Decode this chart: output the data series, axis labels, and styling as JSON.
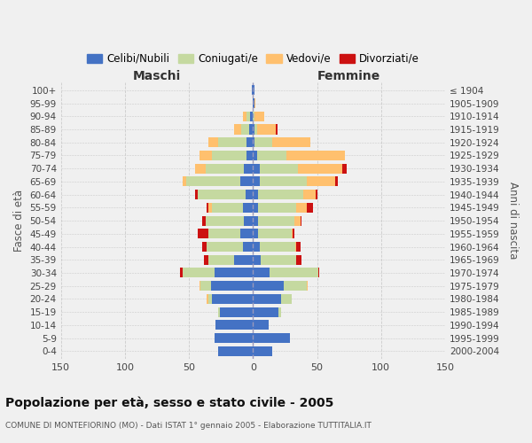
{
  "age_groups": [
    "100+",
    "95-99",
    "90-94",
    "85-89",
    "80-84",
    "75-79",
    "70-74",
    "65-69",
    "60-64",
    "55-59",
    "50-54",
    "45-49",
    "40-44",
    "35-39",
    "30-34",
    "25-29",
    "20-24",
    "15-19",
    "10-14",
    "5-9",
    "0-4"
  ],
  "birth_years": [
    "≤ 1904",
    "1905-1909",
    "1910-1914",
    "1915-1919",
    "1920-1924",
    "1925-1929",
    "1930-1934",
    "1935-1939",
    "1940-1944",
    "1945-1949",
    "1950-1954",
    "1955-1959",
    "1960-1964",
    "1965-1969",
    "1970-1974",
    "1975-1979",
    "1980-1984",
    "1985-1989",
    "1990-1994",
    "1995-1999",
    "2000-2004"
  ],
  "male_celibi": [
    1,
    0,
    2,
    3,
    5,
    5,
    7,
    10,
    6,
    8,
    7,
    10,
    8,
    15,
    30,
    33,
    32,
    26,
    29,
    30,
    27
  ],
  "male_coniugati": [
    0,
    0,
    3,
    6,
    22,
    27,
    30,
    42,
    37,
    24,
    30,
    25,
    28,
    20,
    25,
    8,
    3,
    1,
    0,
    0,
    0
  ],
  "male_vedovi": [
    0,
    0,
    3,
    6,
    8,
    10,
    8,
    3,
    0,
    3,
    0,
    0,
    0,
    0,
    0,
    1,
    1,
    0,
    0,
    0,
    0
  ],
  "male_divorziati": [
    0,
    0,
    0,
    0,
    0,
    0,
    0,
    0,
    2,
    1,
    3,
    8,
    4,
    3,
    2,
    0,
    0,
    0,
    0,
    0,
    0
  ],
  "female_nubili": [
    1,
    1,
    0,
    1,
    1,
    3,
    5,
    5,
    4,
    4,
    4,
    4,
    5,
    6,
    13,
    24,
    22,
    20,
    12,
    29,
    15
  ],
  "female_coniugate": [
    0,
    0,
    1,
    2,
    14,
    23,
    30,
    37,
    35,
    30,
    28,
    26,
    28,
    28,
    38,
    18,
    8,
    2,
    0,
    0,
    0
  ],
  "female_vedove": [
    0,
    1,
    8,
    15,
    30,
    46,
    35,
    22,
    10,
    8,
    5,
    1,
    1,
    0,
    0,
    1,
    0,
    0,
    0,
    0,
    0
  ],
  "female_divorziate": [
    0,
    0,
    0,
    1,
    0,
    0,
    3,
    2,
    1,
    5,
    1,
    1,
    3,
    4,
    1,
    0,
    0,
    0,
    0,
    0,
    0
  ],
  "colors": {
    "celibi_nubili": "#4472c4",
    "coniugati": "#c5d9a0",
    "vedovi": "#ffc06e",
    "divorziati": "#cc1111"
  },
  "xlim": 150,
  "title": "Popolazione per età, sesso e stato civile - 2005",
  "subtitle": "COMUNE DI MONTEFIORINO (MO) - Dati ISTAT 1° gennaio 2005 - Elaborazione TUTTITALIA.IT",
  "label_maschi": "Maschi",
  "label_femmine": "Femmine",
  "ylabel_left": "Fasce di età",
  "ylabel_right": "Anni di nascita",
  "legend_labels": [
    "Celibi/Nubili",
    "Coniugati/e",
    "Vedovi/e",
    "Divorziati/e"
  ],
  "bg_color": "#f0f0f0"
}
